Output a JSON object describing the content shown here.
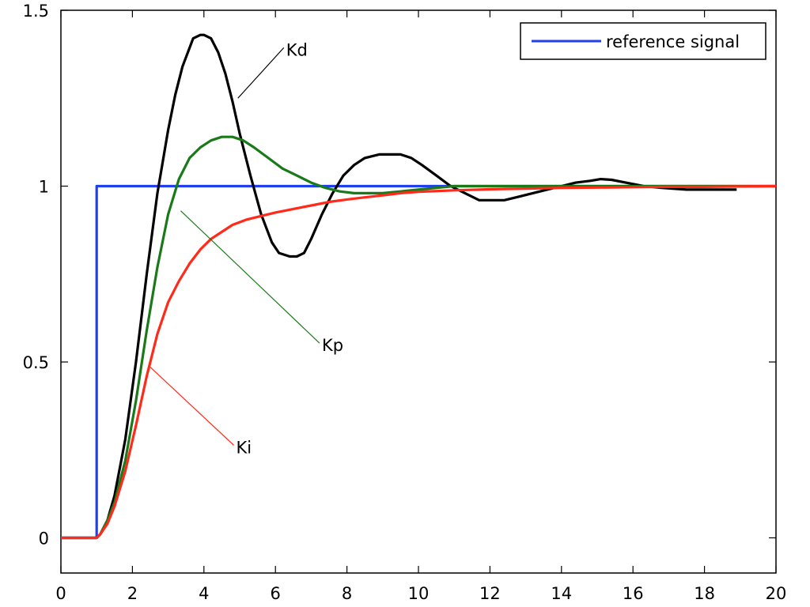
{
  "chart_data": {
    "type": "line",
    "xlim": [
      0,
      20
    ],
    "ylim": [
      -0.1,
      1.5
    ],
    "x_ticks": [
      0,
      2,
      4,
      6,
      8,
      10,
      12,
      14,
      16,
      18,
      20
    ],
    "y_ticks": [
      0,
      0.5,
      1,
      1.5
    ],
    "x_tick_labels": [
      "0",
      "2",
      "4",
      "6",
      "8",
      "10",
      "12",
      "14",
      "16",
      "18",
      "20"
    ],
    "y_tick_labels": [
      "0",
      "0.5",
      "1",
      "1.5"
    ],
    "grid": false,
    "legend": {
      "placement": "top-right",
      "entries": [
        "reference signal"
      ]
    },
    "series": [
      {
        "name": "reference signal",
        "color": "#1f3ff0",
        "x": [
          0,
          1,
          1,
          20
        ],
        "y": [
          0,
          0,
          1,
          1
        ]
      },
      {
        "label": "Kd",
        "color": "#000000",
        "x": [
          0,
          1,
          1.1,
          1.3,
          1.5,
          1.8,
          2.1,
          2.4,
          2.7,
          3.0,
          3.2,
          3.4,
          3.7,
          3.9,
          4.0,
          4.2,
          4.4,
          4.6,
          4.8,
          5.0,
          5.3,
          5.6,
          5.9,
          6.1,
          6.4,
          6.6,
          6.8,
          7.0,
          7.3,
          7.6,
          7.9,
          8.2,
          8.5,
          8.9,
          9.2,
          9.5,
          9.8,
          10.1,
          10.5,
          10.9,
          11.3,
          11.7,
          12.0,
          12.4,
          12.8,
          13.2,
          13.6,
          14.0,
          14.4,
          14.8,
          15.1,
          15.4,
          15.8,
          16.3,
          16.8,
          17.5,
          18.2,
          18.9
        ],
        "y": [
          0,
          0,
          0.01,
          0.05,
          0.12,
          0.28,
          0.5,
          0.75,
          0.98,
          1.16,
          1.26,
          1.34,
          1.42,
          1.43,
          1.43,
          1.42,
          1.38,
          1.32,
          1.24,
          1.15,
          1.03,
          0.92,
          0.84,
          0.81,
          0.8,
          0.8,
          0.81,
          0.85,
          0.92,
          0.98,
          1.03,
          1.06,
          1.08,
          1.09,
          1.09,
          1.09,
          1.08,
          1.06,
          1.03,
          1.0,
          0.98,
          0.96,
          0.96,
          0.96,
          0.97,
          0.98,
          0.99,
          1.0,
          1.01,
          1.015,
          1.02,
          1.018,
          1.01,
          1.0,
          0.995,
          0.99,
          0.99,
          0.99
        ]
      },
      {
        "label": "Kp",
        "color": "#1a7a1a",
        "x": [
          0,
          1,
          1.1,
          1.3,
          1.5,
          1.8,
          2.1,
          2.4,
          2.7,
          3.0,
          3.3,
          3.6,
          3.9,
          4.2,
          4.5,
          4.8,
          5.1,
          5.4,
          5.8,
          6.2,
          6.6,
          7.0,
          7.4,
          7.8,
          8.2,
          8.6,
          9.0,
          9.5,
          10.0,
          10.5,
          11.0,
          12.0,
          13.0,
          14.0,
          15.0,
          16.0,
          17.0,
          18.0,
          19.0,
          20.0
        ],
        "y": [
          0,
          0,
          0.01,
          0.05,
          0.1,
          0.22,
          0.39,
          0.59,
          0.77,
          0.92,
          1.02,
          1.08,
          1.11,
          1.13,
          1.14,
          1.14,
          1.13,
          1.11,
          1.08,
          1.05,
          1.03,
          1.01,
          0.995,
          0.985,
          0.98,
          0.98,
          0.98,
          0.985,
          0.99,
          0.995,
          1.0,
          1.0,
          1.0,
          1.0,
          1.0,
          1.0,
          1.0,
          1.0,
          1.0,
          1.0
        ]
      },
      {
        "label": "Ki",
        "color": "#ff2a1a",
        "x": [
          0,
          1,
          1.1,
          1.3,
          1.5,
          1.8,
          2.1,
          2.4,
          2.7,
          3.0,
          3.3,
          3.6,
          3.9,
          4.2,
          4.5,
          4.8,
          5.2,
          5.6,
          6.0,
          6.5,
          7.0,
          7.5,
          8.0,
          8.5,
          9.0,
          9.5,
          10.0,
          11.0,
          12.0,
          13.0,
          14.0,
          15.0,
          16.0,
          17.0,
          18.0,
          19.0,
          20.0
        ],
        "y": [
          0,
          0,
          0.01,
          0.04,
          0.09,
          0.19,
          0.32,
          0.46,
          0.58,
          0.67,
          0.73,
          0.78,
          0.82,
          0.85,
          0.87,
          0.89,
          0.905,
          0.915,
          0.925,
          0.935,
          0.945,
          0.955,
          0.962,
          0.968,
          0.974,
          0.98,
          0.984,
          0.988,
          0.991,
          0.993,
          0.995,
          0.996,
          0.997,
          0.998,
          0.998,
          0.999,
          1.0
        ]
      }
    ],
    "annotations": [
      {
        "text": "Kd",
        "x": 6.3,
        "y": 1.38,
        "target": [
          4.95,
          1.25
        ],
        "color": "#000000"
      },
      {
        "text": "Kp",
        "x": 7.3,
        "y": 0.54,
        "target": [
          3.35,
          0.93
        ],
        "color": "#1a7a1a"
      },
      {
        "text": "Ki",
        "x": 4.9,
        "y": 0.25,
        "target": [
          2.45,
          0.49
        ],
        "color": "#ff2a1a"
      }
    ]
  }
}
